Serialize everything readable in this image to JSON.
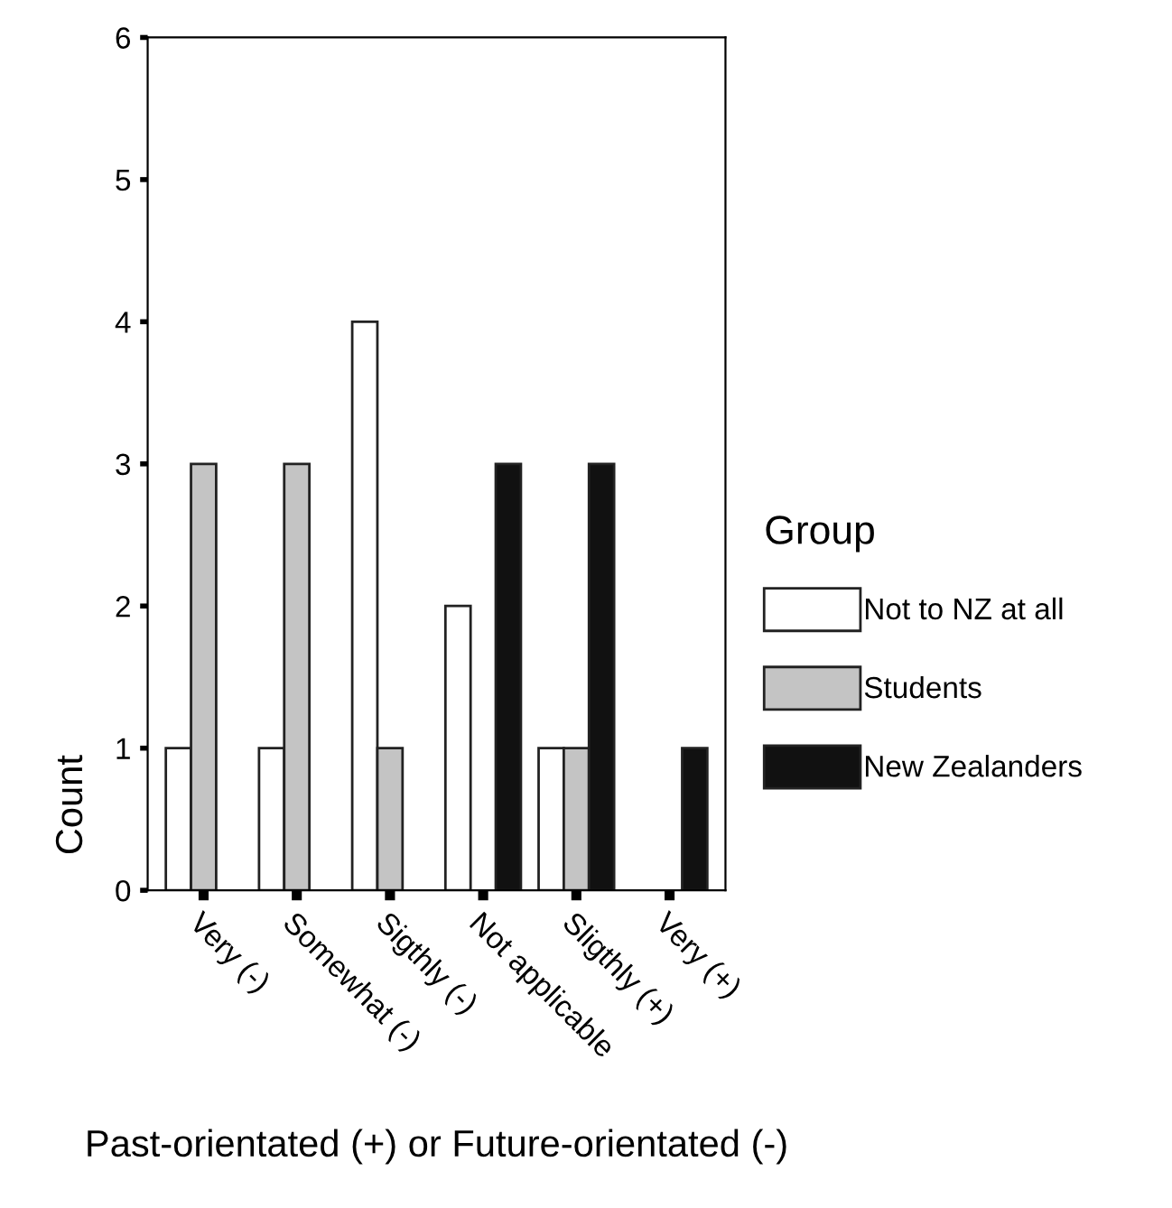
{
  "chart_data": {
    "type": "bar",
    "xlabel": "Past-orientated (+) or Future-orientated (-)",
    "ylabel": "Count",
    "legend_title": "Group",
    "categories": [
      "Very (-)",
      "Somewhat (-)",
      "Sigthly (-)",
      "Not applicable",
      "Sligthly (+)",
      "Very (+)"
    ],
    "series": [
      {
        "name": "Not to NZ at all",
        "color": "#ffffff",
        "values": [
          1,
          1,
          4,
          2,
          1,
          0
        ]
      },
      {
        "name": "Students",
        "color": "#c4c4c4",
        "values": [
          3,
          3,
          1,
          0,
          1,
          0
        ]
      },
      {
        "name": "New Zealanders",
        "color": "#111111",
        "values": [
          0,
          0,
          0,
          3,
          3,
          1
        ]
      }
    ],
    "ylim": [
      0,
      6
    ],
    "yticks": [
      0,
      1,
      2,
      3,
      4,
      5,
      6
    ],
    "grid": false,
    "legend": "right"
  }
}
